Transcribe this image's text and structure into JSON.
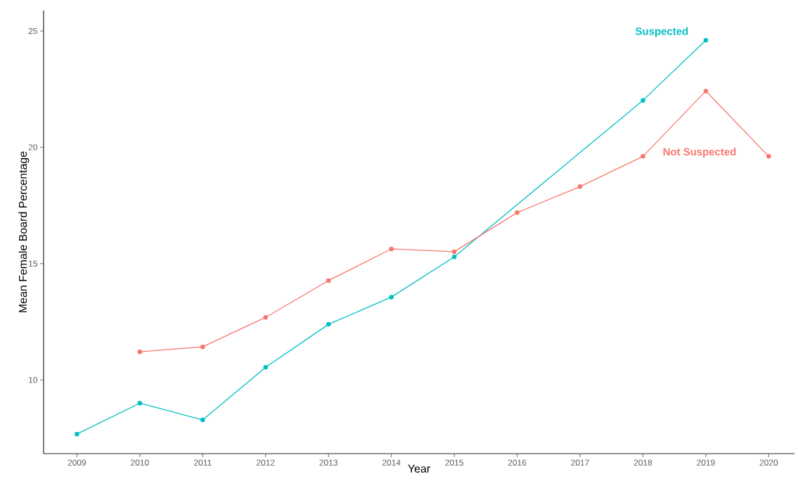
{
  "chart_data": {
    "type": "line",
    "xlabel": "Year",
    "ylabel": "Mean Female Board Percentage",
    "xlim": [
      2008.47,
      2020.41
    ],
    "ylim": [
      6.83,
      25.88
    ],
    "xticks": [
      2009,
      2010,
      2011,
      2012,
      2013,
      2014,
      2015,
      2016,
      2017,
      2018,
      2019,
      2020
    ],
    "yticks": [
      10,
      15,
      20,
      25
    ],
    "grid": false,
    "legend": false,
    "marker": "circle",
    "line_style": "solid",
    "series": [
      {
        "name": "Suspected",
        "color": "#00bfc4",
        "x": [
          2009,
          2010,
          2011,
          2012,
          2013,
          2014,
          2015,
          2018,
          2019
        ],
        "values": [
          7.67,
          9.0,
          8.28,
          10.54,
          12.39,
          13.56,
          15.29,
          22.02,
          24.6
        ]
      },
      {
        "name": "Not Suspected",
        "color": "#f8766d",
        "x": [
          2010,
          2011,
          2012,
          2013,
          2014,
          2015,
          2016,
          2017,
          2018,
          2019,
          2020
        ],
        "values": [
          11.21,
          11.42,
          12.69,
          14.27,
          15.63,
          15.51,
          17.19,
          18.31,
          19.61,
          22.42,
          19.61
        ]
      }
    ]
  }
}
